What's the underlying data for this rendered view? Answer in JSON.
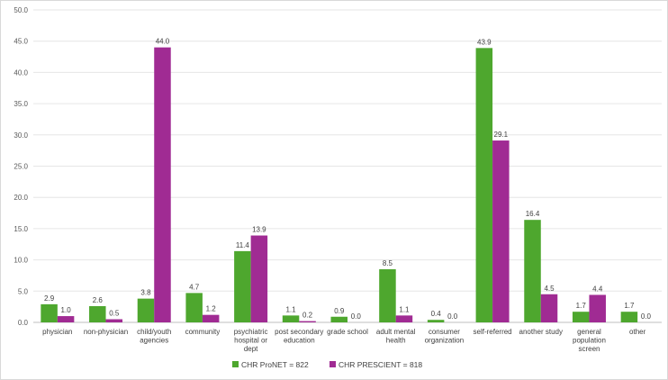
{
  "chart_data": {
    "type": "bar",
    "title": "",
    "xlabel": "",
    "ylabel": "",
    "ylim": [
      0,
      50
    ],
    "ytick_step": 5,
    "ytick_decimals": 1,
    "grid": true,
    "legend_position": "bottom",
    "categories": [
      [
        "physician"
      ],
      [
        "non-physician"
      ],
      [
        "child/youth",
        "agencies"
      ],
      [
        "community"
      ],
      [
        "psychiatric",
        "hospital or",
        "dept"
      ],
      [
        "post secondary",
        "education"
      ],
      [
        "grade school"
      ],
      [
        "adult mental",
        "health"
      ],
      [
        "consumer",
        "organization"
      ],
      [
        "self-referred"
      ],
      [
        "another study"
      ],
      [
        "general",
        "population",
        "screen"
      ],
      [
        "other"
      ]
    ],
    "series": [
      {
        "name": "CHR ProNET = 822",
        "color": "#4ea72e",
        "values": [
          2.9,
          2.6,
          3.8,
          4.7,
          11.4,
          1.1,
          0.9,
          8.5,
          0.4,
          43.9,
          16.4,
          1.7,
          1.7
        ]
      },
      {
        "name": "CHR PRESCIENT = 818",
        "color": "#a02b93",
        "values": [
          1.0,
          0.5,
          44.0,
          1.2,
          13.9,
          0.2,
          0.0,
          1.1,
          0.0,
          29.1,
          4.5,
          4.4,
          0.0
        ]
      }
    ]
  }
}
